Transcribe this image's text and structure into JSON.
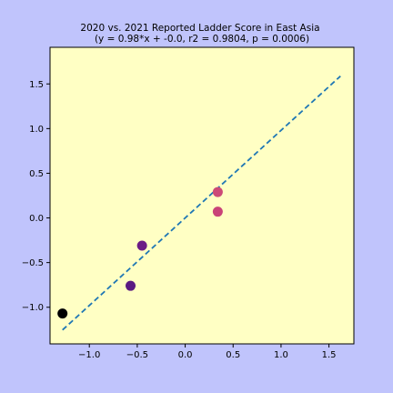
{
  "chart_data": {
    "type": "scatter",
    "title": "2020 vs. 2021 Reported Ladder Score in East Asia",
    "subtitle": "(y = 0.98*x + -0.0, r2 = 0.9804, p = 0.0006)",
    "xlabel": "",
    "ylabel": "",
    "xlim": [
      -1.41,
      1.76
    ],
    "ylim": [
      -1.41,
      1.91
    ],
    "xticks": [
      -1.0,
      -0.5,
      0.0,
      0.5,
      1.0,
      1.5
    ],
    "xtick_labels": [
      "−1.0",
      "−0.5",
      "0.0",
      "0.5",
      "1.0",
      "1.5"
    ],
    "yticks": [
      -1.0,
      -0.5,
      0.0,
      0.5,
      1.0,
      1.5
    ],
    "ytick_labels": [
      "−1.0",
      "−0.5",
      "0.0",
      "0.5",
      "1.0",
      "1.5"
    ],
    "grid": false,
    "points": [
      {
        "x": -1.28,
        "y": -1.07,
        "color": "#000000"
      },
      {
        "x": -0.57,
        "y": -0.76,
        "color": "#5a1a82"
      },
      {
        "x": -0.45,
        "y": -0.31,
        "color": "#6b1c86"
      },
      {
        "x": 0.34,
        "y": 0.29,
        "color": "#cc4a77"
      },
      {
        "x": 0.34,
        "y": 0.07,
        "color": "#c94378"
      }
    ],
    "fit_line": {
      "slope": 0.98,
      "intercept": -0.0,
      "x_start": -1.28,
      "x_end": 1.62,
      "color": "#1f77b4",
      "style": "dashed"
    },
    "plot_background": "#ffffc4",
    "figure_background": "#c0c4fc"
  }
}
